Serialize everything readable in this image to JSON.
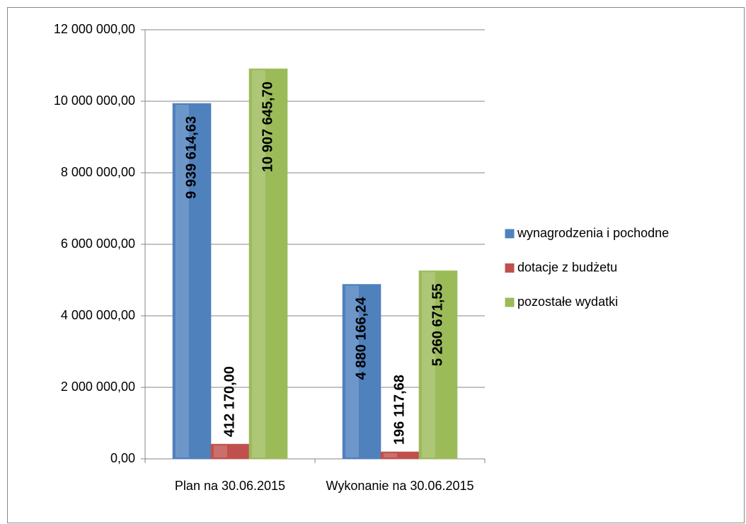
{
  "chart_data": {
    "type": "bar",
    "categories": [
      "Plan na 30.06.2015",
      "Wykonanie na 30.06.2015"
    ],
    "series": [
      {
        "name": "wynagrodzenia i pochodne",
        "color": "#4f81bd",
        "values": [
          9939614.63,
          4880166.24
        ],
        "value_labels": [
          "9 939 614,63",
          "4 880 166,24"
        ]
      },
      {
        "name": "dotacje z budżetu",
        "color": "#c0504d",
        "values": [
          412170.0,
          196117.68
        ],
        "value_labels": [
          "412 170,00",
          "196 117,68"
        ]
      },
      {
        "name": "pozostałe wydatki",
        "color": "#9bbb59",
        "values": [
          10907645.7,
          5260671.55
        ],
        "value_labels": [
          "10 907 645,70",
          "5 260 671,55"
        ]
      }
    ],
    "ylim": [
      0,
      12000000
    ],
    "yticks": [
      {
        "value": 0,
        "label": "0,00"
      },
      {
        "value": 2000000,
        "label": "2 000 000,00"
      },
      {
        "value": 4000000,
        "label": "4 000 000,00"
      },
      {
        "value": 6000000,
        "label": "6 000 000,00"
      },
      {
        "value": 8000000,
        "label": "8 000 000,00"
      },
      {
        "value": 10000000,
        "label": "10 000 000,00"
      },
      {
        "value": 12000000,
        "label": "12 000 000,00"
      }
    ],
    "grid": true,
    "legend": "right"
  }
}
